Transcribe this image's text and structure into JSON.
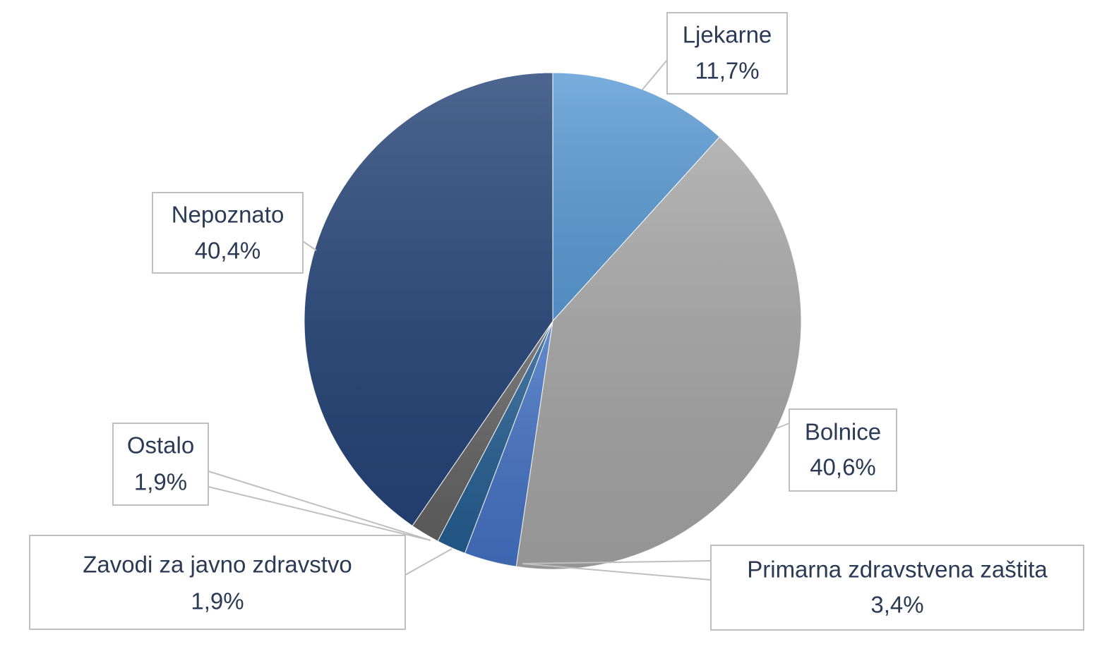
{
  "chart_data": {
    "type": "pie",
    "categories": [
      "Ljekarne",
      "Bolnice",
      "Primarna zdravstvena zaštita",
      "Zavodi za javno zdravstvo",
      "Ostalo",
      "Nepoznato"
    ],
    "values": [
      11.7,
      40.6,
      3.4,
      1.9,
      1.9,
      40.4
    ],
    "value_labels": [
      "11,7%",
      "40,6%",
      "3,4%",
      "1,9%",
      "1,9%",
      "40,4%"
    ],
    "colors": [
      "#5b9bd5",
      "#a5a5a5",
      "#4472c4",
      "#255e91",
      "#636363",
      "#264478"
    ]
  }
}
